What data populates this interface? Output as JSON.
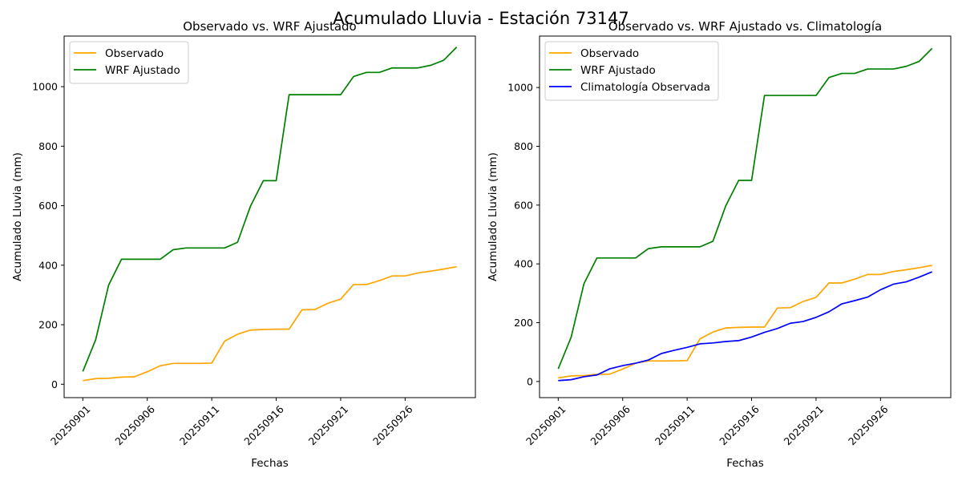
{
  "figure": {
    "suptitle": "Acumulado Lluvia - Estación 73147"
  },
  "colors": {
    "observado": "#FFA500",
    "wrf": "#008000",
    "clima": "#0000FF"
  },
  "chart_data": [
    {
      "type": "line",
      "title": "Observado vs. WRF Ajustado",
      "xlabel": "Fechas",
      "ylabel": "Acumulado Lluvia (mm)",
      "x_ticks": [
        "20250901",
        "20250906",
        "20250911",
        "20250916",
        "20250921",
        "20250926"
      ],
      "x_tick_days": [
        1,
        6,
        11,
        16,
        21,
        26
      ],
      "x": [
        1,
        2,
        3,
        4,
        5,
        6,
        7,
        8,
        9,
        10,
        11,
        12,
        13,
        14,
        15,
        16,
        17,
        18,
        19,
        20,
        21,
        22,
        23,
        24,
        25,
        26,
        27,
        28,
        29,
        30
      ],
      "xlim": [
        -0.45,
        31.45
      ],
      "y_ticks": [
        0,
        200,
        400,
        600,
        800,
        1000
      ],
      "ylim": [
        -45,
        1170
      ],
      "grid": false,
      "legend_position": "top-left",
      "series": [
        {
          "name": "Observado",
          "color_key": "observado",
          "values": [
            12,
            19,
            20,
            24,
            25,
            42,
            62,
            70,
            70,
            70,
            71,
            145,
            168,
            182,
            184,
            185,
            185,
            250,
            251,
            272,
            286,
            335,
            335,
            348,
            364,
            364,
            374,
            380,
            387,
            395
          ]
        },
        {
          "name": "WRF Ajustado",
          "color_key": "wrf",
          "values": [
            43,
            150,
            333,
            420,
            420,
            420,
            420,
            452,
            458,
            458,
            458,
            458,
            477,
            598,
            684,
            684,
            973,
            973,
            973,
            973,
            973,
            1034,
            1048,
            1048,
            1063,
            1063,
            1063,
            1072,
            1089,
            1133
          ]
        }
      ]
    },
    {
      "type": "line",
      "title": "Observado vs. WRF Ajustado vs. Climatología",
      "xlabel": "Fechas",
      "ylabel": "Acumulado Lluvia (mm)",
      "x_ticks": [
        "20250901",
        "20250906",
        "20250911",
        "20250916",
        "20250921",
        "20250926"
      ],
      "x_tick_days": [
        1,
        6,
        11,
        16,
        21,
        26
      ],
      "x": [
        1,
        2,
        3,
        4,
        5,
        6,
        7,
        8,
        9,
        10,
        11,
        12,
        13,
        14,
        15,
        16,
        17,
        18,
        19,
        20,
        21,
        22,
        23,
        24,
        25,
        26,
        27,
        28,
        29,
        30
      ],
      "xlim": [
        -0.45,
        31.45
      ],
      "y_ticks": [
        0,
        200,
        400,
        600,
        800,
        1000
      ],
      "ylim": [
        -55,
        1175
      ],
      "grid": false,
      "legend_position": "top-left",
      "series": [
        {
          "name": "Observado",
          "color_key": "observado",
          "values": [
            12,
            19,
            20,
            24,
            25,
            42,
            62,
            70,
            70,
            70,
            71,
            145,
            168,
            182,
            184,
            185,
            185,
            250,
            251,
            272,
            286,
            335,
            335,
            348,
            364,
            364,
            374,
            380,
            387,
            395
          ]
        },
        {
          "name": "WRF Ajustado",
          "color_key": "wrf",
          "values": [
            43,
            150,
            333,
            420,
            420,
            420,
            420,
            452,
            458,
            458,
            458,
            458,
            477,
            598,
            684,
            684,
            973,
            973,
            973,
            973,
            973,
            1034,
            1048,
            1048,
            1063,
            1063,
            1063,
            1072,
            1089,
            1133
          ]
        },
        {
          "name": "Climatología Observada",
          "color_key": "clima",
          "values": [
            3,
            6,
            16,
            22,
            43,
            54,
            62,
            73,
            95,
            106,
            116,
            128,
            131,
            136,
            139,
            151,
            167,
            180,
            198,
            204,
            218,
            237,
            264,
            275,
            287,
            312,
            331,
            339,
            355,
            373
          ]
        }
      ]
    }
  ]
}
